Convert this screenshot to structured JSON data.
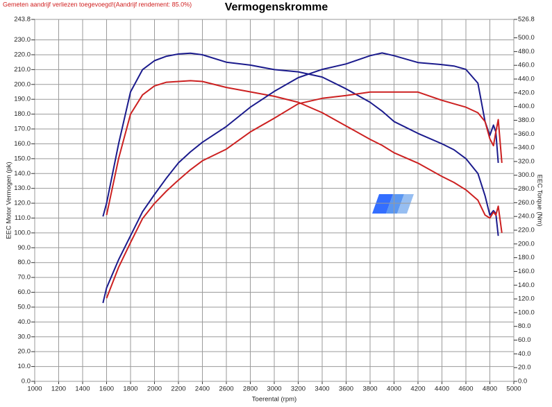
{
  "chart_data": {
    "type": "line",
    "note": "Gemeten aandrijf verliezen toegevoegd!(Aandrijf rendement: 85.0%)",
    "title": "Vermogenskromme",
    "y_label": "EEC Motor Vermogen (pk)",
    "y2_label": "EEC Torque (Nm)",
    "x_label": "Toerental (rpm)",
    "grid": true,
    "xlim": [
      1000,
      5000
    ],
    "xticks": [
      1000,
      1200,
      1400,
      1600,
      1800,
      2000,
      2200,
      2400,
      2600,
      2800,
      3000,
      3200,
      3400,
      3600,
      3800,
      4000,
      4200,
      4400,
      4600,
      4800,
      5000
    ],
    "ylim": [
      0,
      243.8
    ],
    "yticks": [
      {
        "value": 0,
        "label": "0.0"
      },
      {
        "value": 10,
        "label": "10.0"
      },
      {
        "value": 20,
        "label": "20.0"
      },
      {
        "value": 30,
        "label": "30.0"
      },
      {
        "value": 40,
        "label": "40.0"
      },
      {
        "value": 50,
        "label": "50.0"
      },
      {
        "value": 60,
        "label": "60.0"
      },
      {
        "value": 70,
        "label": "70.0"
      },
      {
        "value": 80,
        "label": "80.0"
      },
      {
        "value": 90,
        "label": "90.0"
      },
      {
        "value": 100,
        "label": "100.0"
      },
      {
        "value": 110,
        "label": "110.0"
      },
      {
        "value": 120,
        "label": "120.0"
      },
      {
        "value": 130,
        "label": "130.0"
      },
      {
        "value": 140,
        "label": "140.0"
      },
      {
        "value": 150,
        "label": "150.0"
      },
      {
        "value": 160,
        "label": "160.0"
      },
      {
        "value": 170,
        "label": "170.0"
      },
      {
        "value": 180,
        "label": "180.0"
      },
      {
        "value": 190,
        "label": "190.0"
      },
      {
        "value": 200,
        "label": "200.0"
      },
      {
        "value": 210,
        "label": "210.0"
      },
      {
        "value": 220,
        "label": "220.0"
      },
      {
        "value": 230,
        "label": "230.0"
      },
      243.8
    ],
    "y2lim": [
      0,
      526.8
    ],
    "y2ticks": [
      {
        "value": 0,
        "label": "0.0"
      },
      {
        "value": 20,
        "label": "20.0"
      },
      {
        "value": 40,
        "label": "40.0"
      },
      {
        "value": 60,
        "label": "60.0"
      },
      {
        "value": 80,
        "label": "80.0"
      },
      {
        "value": 100,
        "label": "100.0"
      },
      {
        "value": 120,
        "label": "120.0"
      },
      {
        "value": 140,
        "label": "140.0"
      },
      {
        "value": 160,
        "label": "160.0"
      },
      {
        "value": 180,
        "label": "180.0"
      },
      {
        "value": 200,
        "label": "200.0"
      },
      {
        "value": 220,
        "label": "220.0"
      },
      {
        "value": 240,
        "label": "240.0"
      },
      {
        "value": 260,
        "label": "260.0"
      },
      {
        "value": 280,
        "label": "280.0"
      },
      {
        "value": 300,
        "label": "300.0"
      },
      {
        "value": 320,
        "label": "320.0"
      },
      {
        "value": 340,
        "label": "340.0"
      },
      {
        "value": 360,
        "label": "360.0"
      },
      {
        "value": 380,
        "label": "380.0"
      },
      {
        "value": 400,
        "label": "400.0"
      },
      {
        "value": 420,
        "label": "420.0"
      },
      {
        "value": 440,
        "label": "440.0"
      },
      {
        "value": 460,
        "label": "460.0"
      },
      {
        "value": 480,
        "label": "480.0"
      },
      {
        "value": 500,
        "label": "500.0"
      },
      526.8
    ],
    "x": [
      1570,
      1600,
      1700,
      1800,
      1900,
      2000,
      2100,
      2200,
      2300,
      2400,
      2600,
      2800,
      3000,
      3200,
      3400,
      3600,
      3800,
      3900,
      4000,
      4200,
      4400,
      4500,
      4600,
      4700,
      4760,
      4800,
      4830,
      4850,
      4870,
      4900
    ],
    "series": [
      {
        "color": "#1a1a8c",
        "values": [
          111,
          120,
          160,
          195,
          210,
          216,
          219,
          220.5,
          221,
          220,
          215,
          213,
          210,
          208.5,
          205,
          197,
          188,
          182,
          175,
          167,
          160,
          156,
          150,
          140,
          125,
          112,
          115,
          113,
          98,
          null
        ]
      },
      {
        "color": "#cc2020",
        "values": [
          null,
          112,
          150,
          180,
          193,
          199,
          201.5,
          202,
          202.5,
          202,
          198,
          195,
          192,
          188,
          181,
          172,
          163,
          159,
          154,
          147,
          138,
          134,
          129,
          122,
          112,
          110,
          114,
          112,
          118,
          100
        ]
      },
      {
        "color": "#1a1a8c",
        "axis": "y2",
        "values": [
          114,
          136,
          177,
          212,
          247,
          272,
          296,
          318,
          334,
          348,
          371,
          399,
          422,
          442,
          454,
          462,
          474,
          478,
          474,
          464,
          461,
          459,
          454,
          434,
          378,
          358,
          373,
          363,
          318,
          null
        ]
      },
      {
        "color": "#cc2020",
        "axis": "y2",
        "values": [
          null,
          121,
          166,
          202,
          237,
          259,
          277,
          293,
          308,
          321,
          338,
          363,
          383,
          404,
          412,
          416,
          421,
          421,
          421,
          421,
          409,
          404,
          399,
          391,
          378,
          353,
          343,
          363,
          381,
          318
        ]
      }
    ]
  }
}
